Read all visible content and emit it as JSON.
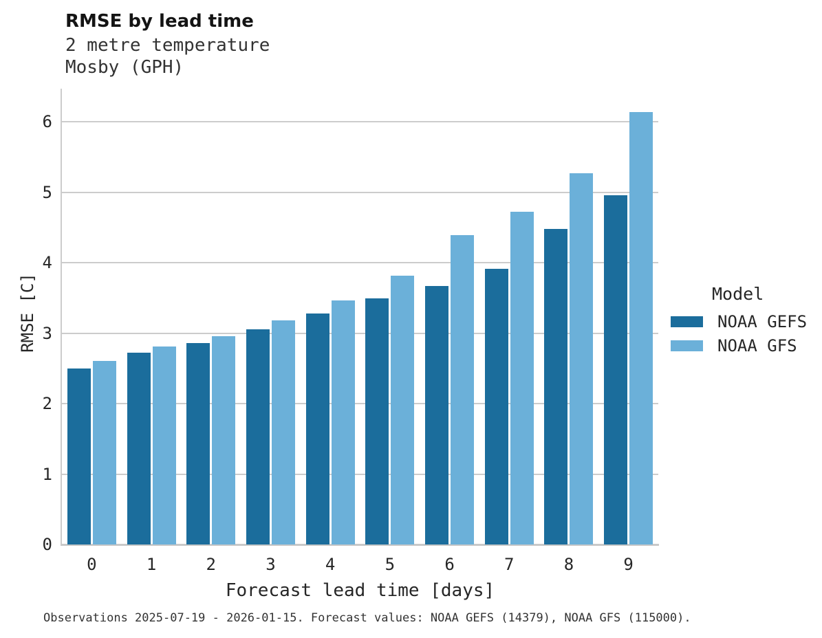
{
  "header": {
    "title": "RMSE by lead time",
    "subtitle_line1": "2 metre temperature",
    "subtitle_line2": "Mosby (GPH)"
  },
  "caption": "Observations 2025-07-19 - 2026-01-15. Forecast values: NOAA GEFS (14379), NOAA GFS (115000).",
  "legend": {
    "title": "Model",
    "entries": [
      {
        "label": "NOAA GEFS",
        "color": "#1b6d9c"
      },
      {
        "label": "NOAA GFS",
        "color": "#6bb0d9"
      }
    ]
  },
  "colors": {
    "gefs_bar": "#1b6d9c",
    "gfs_bar": "#6bb0d9",
    "grid": "#cccccc",
    "axis": "#c9c9c9",
    "text": "#262626"
  },
  "chart_data": {
    "type": "bar",
    "title": "RMSE by lead time",
    "subtitle": [
      "2 metre temperature",
      "Mosby (GPH)"
    ],
    "xlabel": "Forecast lead time [days]",
    "ylabel": "RMSE [C]",
    "categories": [
      0,
      1,
      2,
      3,
      4,
      5,
      6,
      7,
      8,
      9
    ],
    "series": [
      {
        "name": "NOAA GEFS",
        "color": "#1b6d9c",
        "values": [
          2.5,
          2.72,
          2.86,
          3.05,
          3.28,
          3.49,
          3.67,
          3.91,
          4.48,
          4.96
        ]
      },
      {
        "name": "NOAA GFS",
        "color": "#6bb0d9",
        "values": [
          2.61,
          2.81,
          2.96,
          3.18,
          3.46,
          3.82,
          4.39,
          4.72,
          5.27,
          6.14
        ]
      }
    ],
    "ylim": [
      0,
      6.46
    ],
    "yticks": [
      0,
      1,
      2,
      3,
      4,
      5,
      6
    ],
    "grid": "horizontal",
    "legend_title": "Model",
    "legend_position": "right"
  }
}
